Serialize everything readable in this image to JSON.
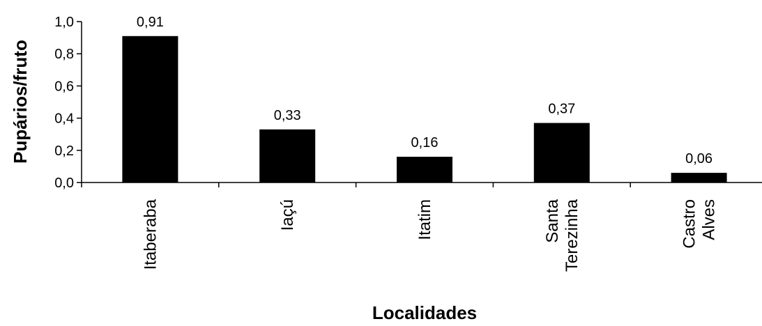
{
  "chart_data": {
    "type": "bar",
    "title": "",
    "xlabel": "Localidades",
    "ylabel": "Pupários/fruto",
    "categories": [
      [
        "Itaberaba"
      ],
      [
        "Iaçú"
      ],
      [
        "Itatim"
      ],
      [
        "Santa",
        "Terezinha"
      ],
      [
        "Castro",
        "Alves"
      ]
    ],
    "values": [
      0.91,
      0.33,
      0.16,
      0.37,
      0.06
    ],
    "data_labels": [
      "0,91",
      "0,33",
      "0,16",
      "0,37",
      "0,06"
    ],
    "ylim": [
      0,
      1.0
    ],
    "yticks": [
      0,
      0.2,
      0.4,
      0.6,
      0.8,
      1.0
    ],
    "ytick_labels": [
      "0,0",
      "0,2",
      "0,4",
      "0,6",
      "0,8",
      "1,0"
    ],
    "grid": false,
    "legend": "none",
    "colors": {
      "bar": "#000000",
      "axis": "#000000",
      "background": "#ffffff"
    }
  }
}
